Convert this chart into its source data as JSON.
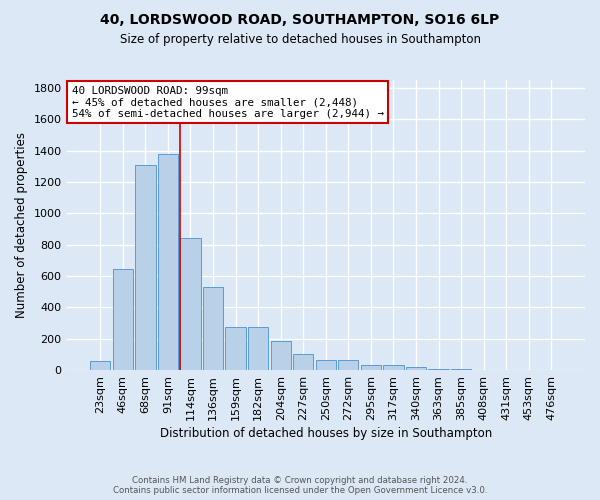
{
  "title1": "40, LORDSWOOD ROAD, SOUTHAMPTON, SO16 6LP",
  "title2": "Size of property relative to detached houses in Southampton",
  "xlabel": "Distribution of detached houses by size in Southampton",
  "ylabel": "Number of detached properties",
  "footnote1": "Contains HM Land Registry data © Crown copyright and database right 2024.",
  "footnote2": "Contains public sector information licensed under the Open Government Licence v3.0.",
  "categories": [
    "23sqm",
    "46sqm",
    "68sqm",
    "91sqm",
    "114sqm",
    "136sqm",
    "159sqm",
    "182sqm",
    "204sqm",
    "227sqm",
    "250sqm",
    "272sqm",
    "295sqm",
    "317sqm",
    "340sqm",
    "363sqm",
    "385sqm",
    "408sqm",
    "431sqm",
    "453sqm",
    "476sqm"
  ],
  "values": [
    55,
    645,
    1310,
    1380,
    845,
    530,
    275,
    275,
    185,
    105,
    65,
    65,
    35,
    35,
    20,
    10,
    10,
    0,
    0,
    0,
    0
  ],
  "bar_color": "#b8d0e8",
  "bar_edge_color": "#5b9bd5",
  "annotation_line1": "40 LORDSWOOD ROAD: 99sqm",
  "annotation_line2": "← 45% of detached houses are smaller (2,448)",
  "annotation_line3": "54% of semi-detached houses are larger (2,944) →",
  "annotation_box_color": "#ffffff",
  "annotation_box_edge": "#cc0000",
  "vline_x": 3.55,
  "vline_color": "#cc0000",
  "background_color": "#dce8f5",
  "plot_background": "#dce8f5",
  "grid_color": "#ffffff",
  "ylim": [
    0,
    1850
  ],
  "yticks": [
    0,
    200,
    400,
    600,
    800,
    1000,
    1200,
    1400,
    1600,
    1800
  ]
}
